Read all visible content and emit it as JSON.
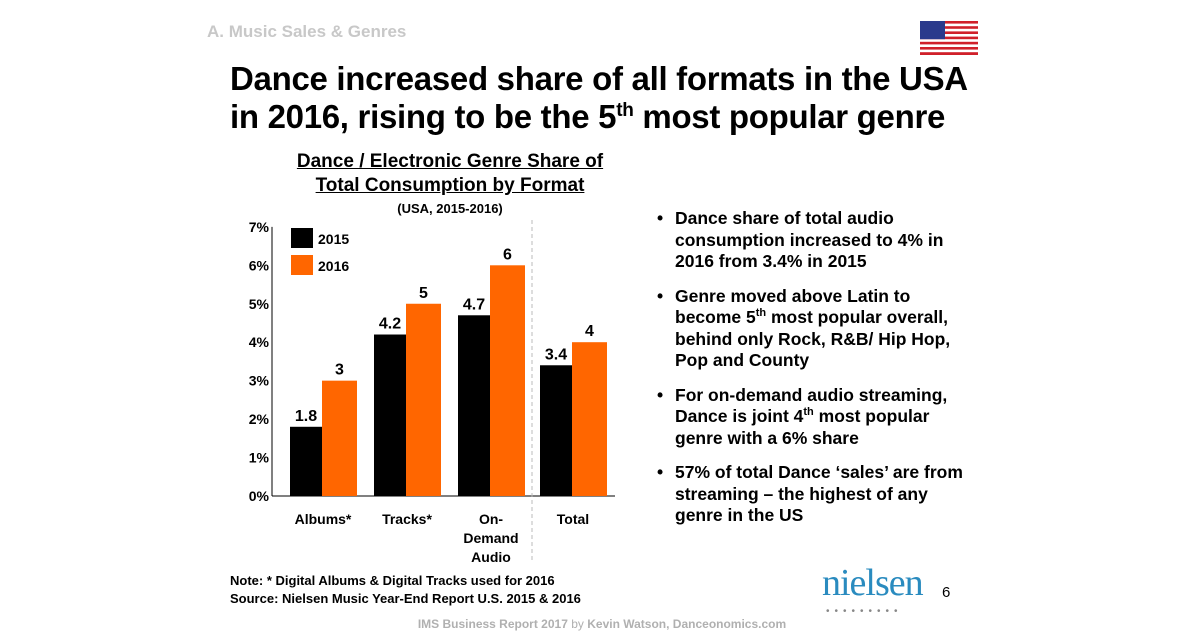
{
  "section": "A. Music Sales & Genres",
  "title": {
    "line1": "Dance increased share of all formats in the USA",
    "line2a": "in 2016, rising to be the 5",
    "line2sup": "th",
    "line2b": " most popular genre"
  },
  "flag_icon": "us-flag-icon",
  "chart_data": {
    "type": "bar",
    "title": "Dance / Electronic Genre Share of Total Consumption by Format",
    "title_line1": "Dance / Electronic Genre Share of",
    "title_line2": "Total Consumption by Format",
    "subtitle": "(USA, 2015-2016)",
    "categories": [
      "Albums*",
      "Tracks*",
      "On-Demand Audio",
      "Total"
    ],
    "category_lines": [
      [
        "Albums*"
      ],
      [
        "Tracks*"
      ],
      [
        "On-",
        "Demand",
        "Audio"
      ],
      [
        "Total"
      ]
    ],
    "series": [
      {
        "name": "2015",
        "color": "#000000",
        "values": [
          1.8,
          4.2,
          4.7,
          3.4
        ],
        "labels": [
          "1.8",
          "4.2",
          "4.7",
          "3.4"
        ]
      },
      {
        "name": "2016",
        "color": "#ff6600",
        "values": [
          3,
          5,
          6,
          4
        ],
        "labels": [
          "3",
          "5",
          "6",
          "4"
        ]
      }
    ],
    "yticks": [
      "0%",
      "1%",
      "2%",
      "3%",
      "4%",
      "5%",
      "6%",
      "7%"
    ],
    "ylim": [
      0,
      7
    ],
    "legend": "top-left",
    "grid": false
  },
  "bullets": [
    {
      "text": "Dance share of total audio consumption increased to 4% in 2016 from 3.4% in 2015"
    },
    {
      "a": "Genre moved above Latin to become 5",
      "sup": "th",
      "b": " most popular overall, behind only Rock, R&B/ Hip Hop, Pop and County"
    },
    {
      "a": "For on-demand audio streaming, Dance is joint 4",
      "sup": "th",
      "b": " most popular genre with a 6% share"
    },
    {
      "text": "57% of total Dance ‘sales’ are from streaming – the highest of any genre in the US"
    }
  ],
  "note": "Note: * Digital Albums & Digital Tracks used for 2016",
  "source": "Source: Nielsen Music Year-End Report U.S. 2015 & 2016",
  "logo": "nielsen",
  "page_number": "6",
  "footer": {
    "a": "IMS Business Report 2017",
    "by": " by ",
    "b": "Kevin Watson, Danceonomics.com"
  }
}
